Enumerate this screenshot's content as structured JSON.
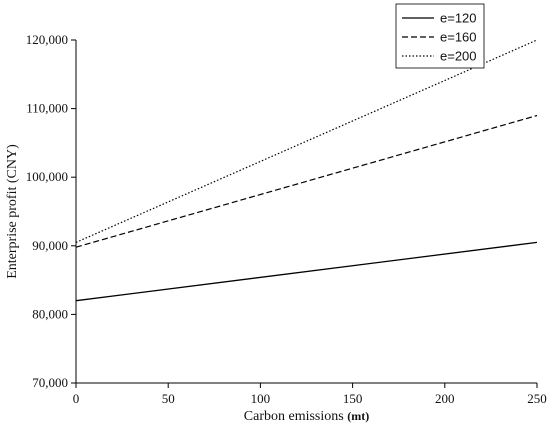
{
  "chart_data": {
    "type": "line",
    "title": "",
    "xlabel": "Carbon emissions",
    "xlabel_unit": "(mt)",
    "ylabel": "Enterprise profit (CNY)",
    "xlim": [
      0,
      250
    ],
    "ylim": [
      70000,
      120000
    ],
    "x_ticks": [
      0,
      50,
      100,
      150,
      200,
      250
    ],
    "y_ticks": [
      70000,
      80000,
      90000,
      100000,
      110000,
      120000
    ],
    "x_tick_labels": [
      "0",
      "50",
      "100",
      "150",
      "200",
      "250"
    ],
    "y_tick_labels": [
      "70,000",
      "80,000",
      "90,000",
      "100,000",
      "110,000",
      "120,000"
    ],
    "grid": false,
    "legend_position": "top-right",
    "x": [
      0,
      250
    ],
    "series": [
      {
        "name": "e=120",
        "values": [
          82000,
          90500
        ],
        "dash": "solid",
        "color": "#000000"
      },
      {
        "name": "e=160",
        "values": [
          89800,
          109000
        ],
        "dash": "dashed",
        "color": "#000000"
      },
      {
        "name": "e=200",
        "values": [
          90500,
          120000
        ],
        "dash": "dotted",
        "color": "#000000"
      }
    ]
  }
}
